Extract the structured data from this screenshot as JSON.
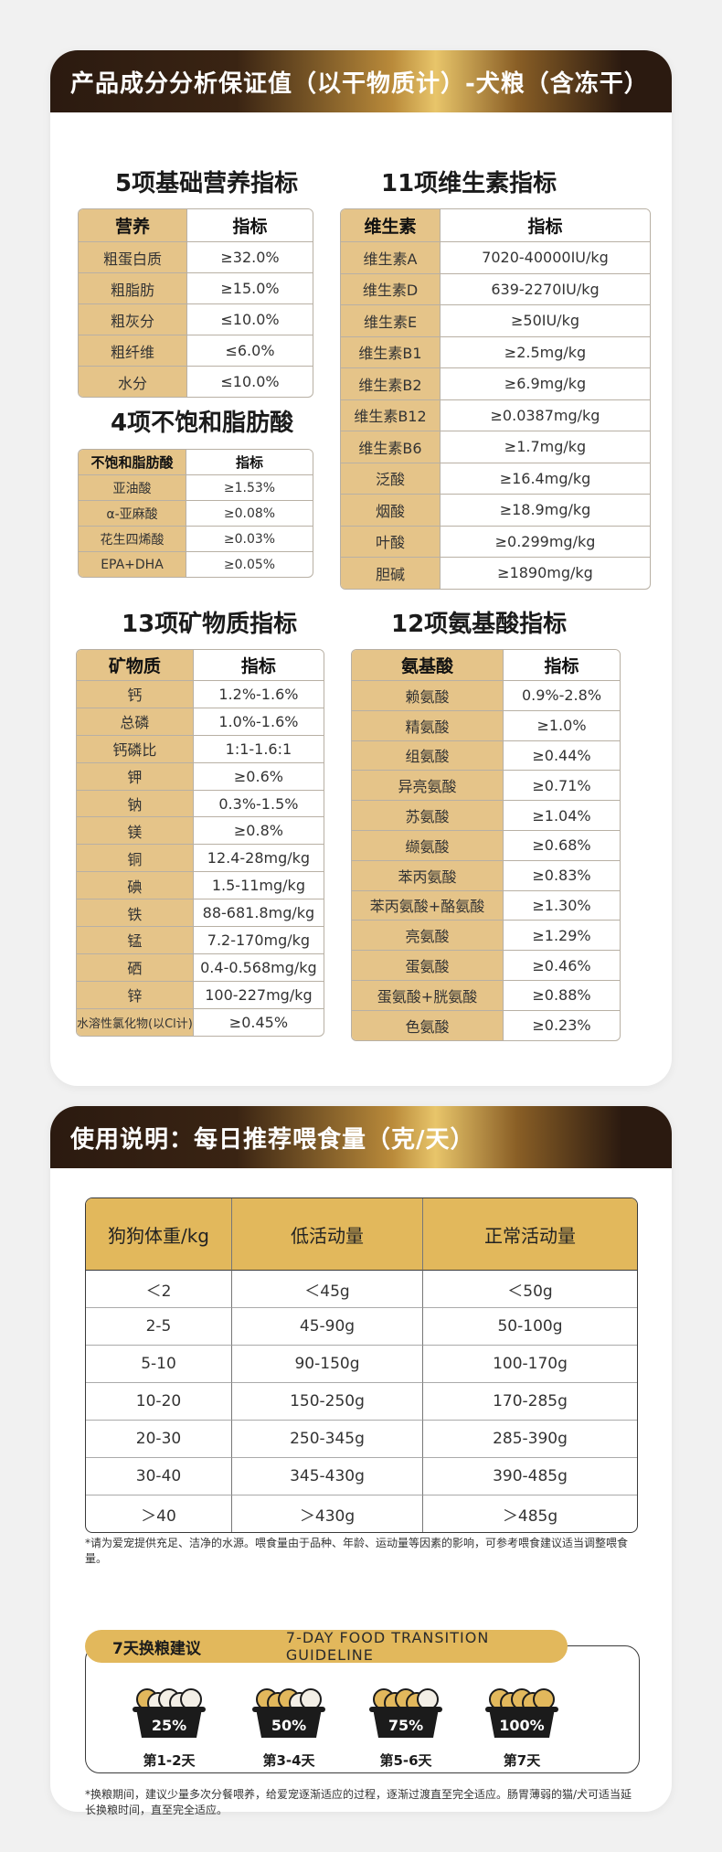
{
  "banner1": "产品成分分析保证值（以干物质计）-犬粮（含冻干）",
  "basic": {
    "title": "5项基础营养指标",
    "head": [
      "营养",
      "指标"
    ],
    "rows": [
      [
        "粗蛋白质",
        "≥32.0%"
      ],
      [
        "粗脂肪",
        "≥15.0%"
      ],
      [
        "粗灰分",
        "≤10.0%"
      ],
      [
        "粗纤维",
        "≤6.0%"
      ],
      [
        "水分",
        "≤10.0%"
      ]
    ]
  },
  "vitamin": {
    "title": "11项维生素指标",
    "head": [
      "维生素",
      "指标"
    ],
    "rows": [
      [
        "维生素A",
        "7020-40000IU/kg"
      ],
      [
        "维生素D",
        "639-2270IU/kg"
      ],
      [
        "维生素E",
        "≥50IU/kg"
      ],
      [
        "维生素B1",
        "≥2.5mg/kg"
      ],
      [
        "维生素B2",
        "≥6.9mg/kg"
      ],
      [
        "维生素B12",
        "≥0.0387mg/kg"
      ],
      [
        "维生素B6",
        "≥1.7mg/kg"
      ],
      [
        "泛酸",
        "≥16.4mg/kg"
      ],
      [
        "烟酸",
        "≥18.9mg/kg"
      ],
      [
        "叶酸",
        "≥0.299mg/kg"
      ],
      [
        "胆碱",
        "≥1890mg/kg"
      ]
    ]
  },
  "fatty": {
    "title": "4项不饱和脂肪酸",
    "head": [
      "不饱和脂肪酸",
      "指标"
    ],
    "rows": [
      [
        "亚油酸",
        "≥1.53%"
      ],
      [
        "α-亚麻酸",
        "≥0.08%"
      ],
      [
        "花生四烯酸",
        "≥0.03%"
      ],
      [
        "EPA+DHA",
        "≥0.05%"
      ]
    ]
  },
  "mineral": {
    "title": "13项矿物质指标",
    "head": [
      "矿物质",
      "指标"
    ],
    "rows": [
      [
        "钙",
        "1.2%-1.6%"
      ],
      [
        "总磷",
        "1.0%-1.6%"
      ],
      [
        "钙磷比",
        "1:1-1.6:1"
      ],
      [
        "钾",
        "≥0.6%"
      ],
      [
        "钠",
        "0.3%-1.5%"
      ],
      [
        "镁",
        "≥0.8%"
      ],
      [
        "铜",
        "12.4-28mg/kg"
      ],
      [
        "碘",
        "1.5-11mg/kg"
      ],
      [
        "铁",
        "88-681.8mg/kg"
      ],
      [
        "锰",
        "7.2-170mg/kg"
      ],
      [
        "硒",
        "0.4-0.568mg/kg"
      ],
      [
        "锌",
        "100-227mg/kg"
      ],
      [
        "水溶性氯化物(以Cl计)",
        "≥0.45%"
      ]
    ]
  },
  "amino": {
    "title": "12项氨基酸指标",
    "head": [
      "氨基酸",
      "指标"
    ],
    "rows": [
      [
        "赖氨酸",
        "0.9%-2.8%"
      ],
      [
        "精氨酸",
        "≥1.0%"
      ],
      [
        "组氨酸",
        "≥0.44%"
      ],
      [
        "异亮氨酸",
        "≥0.71%"
      ],
      [
        "苏氨酸",
        "≥1.04%"
      ],
      [
        "缬氨酸",
        "≥0.68%"
      ],
      [
        "苯丙氨酸",
        "≥0.83%"
      ],
      [
        "苯丙氨酸+酪氨酸",
        "≥1.30%"
      ],
      [
        "亮氨酸",
        "≥1.29%"
      ],
      [
        "蛋氨酸",
        "≥0.46%"
      ],
      [
        "蛋氨酸+胱氨酸",
        "≥0.88%"
      ],
      [
        "色氨酸",
        "≥0.23%"
      ]
    ]
  },
  "banner2": "使用说明：每日推荐喂食量（克/天）",
  "feeding": {
    "head": [
      "狗狗体重/kg",
      "低活动量",
      "正常活动量"
    ],
    "rows": [
      [
        "＜2",
        "＜45g",
        "＜50g"
      ],
      [
        "2-5",
        "45-90g",
        "50-100g"
      ],
      [
        "5-10",
        "90-150g",
        "100-170g"
      ],
      [
        "10-20",
        "150-250g",
        "170-285g"
      ],
      [
        "20-30",
        "250-345g",
        "285-390g"
      ],
      [
        "30-40",
        "345-430g",
        "390-485g"
      ],
      [
        "＞40",
        "＞430g",
        "＞485g"
      ]
    ]
  },
  "note1": "*请为爱宠提供充足、洁净的水源。喂食量由于品种、年龄、运动量等因素的影响，可参考喂食建议适当调整喂食量。",
  "transition": {
    "title_cn": "7天换粮建议",
    "title_en": "7-DAY FOOD TRANSITION GUIDELINE",
    "steps": [
      {
        "pct": "25%",
        "label": "第1-2天",
        "fill": 0.25
      },
      {
        "pct": "50%",
        "label": "第3-4天",
        "fill": 0.5
      },
      {
        "pct": "75%",
        "label": "第5-6天",
        "fill": 0.75
      },
      {
        "pct": "100%",
        "label": "第7天",
        "fill": 1.0
      }
    ]
  },
  "note2": "*换粮期间，建议少量多次分餐喂养，给爱宠逐渐适应的过程，逐渐过渡直至完全适应。肠胃薄弱的猫/犬可适当延长换粮时间，直至完全适应。",
  "colors": {
    "gold": "#e5c489",
    "gold_header": "#e2b85c",
    "dark_banner": "#2b1a10"
  }
}
